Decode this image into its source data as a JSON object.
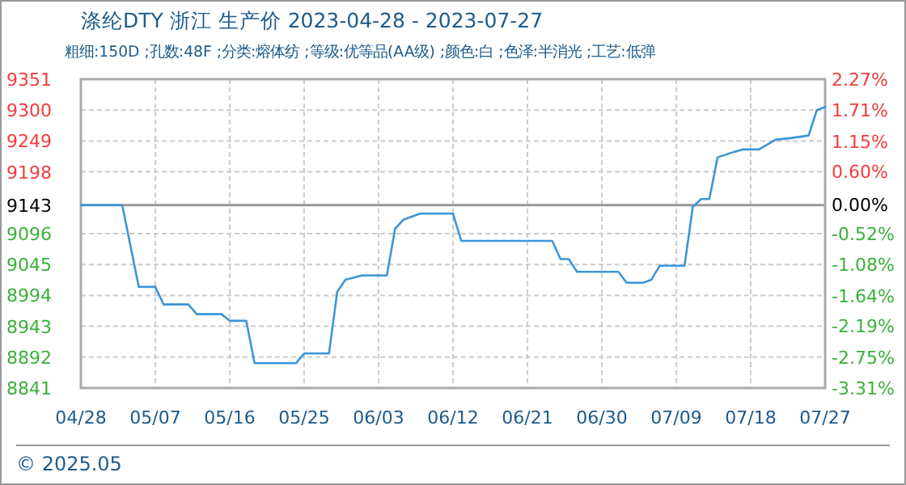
{
  "chart_data": {
    "type": "line",
    "title": "涤纶DTY 浙江 生产价 2023-04-28 - 2023-07-27",
    "subtitle": "粗细:150D ;孔数:48F ;分类:熔体纺 ;等级:优等品(AA级) ;颜色:白 ;色泽:半消光 ;工艺:低弹",
    "x": [
      "2023-04-28",
      "2023-05-03",
      "2023-05-05",
      "2023-05-07",
      "2023-05-08",
      "2023-05-11",
      "2023-05-12",
      "2023-05-15",
      "2023-05-16",
      "2023-05-18",
      "2023-05-19",
      "2023-05-24",
      "2023-05-25",
      "2023-05-28",
      "2023-05-29",
      "2023-05-30",
      "2023-06-01",
      "2023-06-04",
      "2023-06-05",
      "2023-06-06",
      "2023-06-08",
      "2023-06-12",
      "2023-06-13",
      "2023-06-24",
      "2023-06-25",
      "2023-06-26",
      "2023-06-27",
      "2023-07-02",
      "2023-07-03",
      "2023-07-05",
      "2023-07-06",
      "2023-07-07",
      "2023-07-10",
      "2023-07-11",
      "2023-07-12",
      "2023-07-13",
      "2023-07-14",
      "2023-07-16",
      "2023-07-17",
      "2023-07-19",
      "2023-07-21",
      "2023-07-23",
      "2023-07-25",
      "2023-07-26",
      "2023-07-27"
    ],
    "series": [
      {
        "color": "#3a96d8",
        "values": [
          9143,
          9143,
          9008,
          9008,
          8979,
          8979,
          8963,
          8963,
          8952,
          8952,
          8882,
          8882,
          8898,
          8898,
          9000,
          9020,
          9027,
          9027,
          9104,
          9119,
          9129,
          9129,
          9084,
          9084,
          9054,
          9054,
          9033,
          9033,
          9015,
          9015,
          9020,
          9043,
          9043,
          9140,
          9153,
          9153,
          9222,
          9231,
          9235,
          9235,
          9251,
          9254,
          9258,
          9300,
          9305
        ]
      }
    ],
    "xlim": [
      "2023-04-28",
      "2023-07-27"
    ],
    "xticks": [
      {
        "value": "2023-04-28",
        "label": "04/28"
      },
      {
        "value": "2023-05-07",
        "label": "05/07"
      },
      {
        "value": "2023-05-16",
        "label": "05/16"
      },
      {
        "value": "2023-05-25",
        "label": "05/25"
      },
      {
        "value": "2023-06-03",
        "label": "06/03"
      },
      {
        "value": "2023-06-12",
        "label": "06/12"
      },
      {
        "value": "2023-06-21",
        "label": "06/21"
      },
      {
        "value": "2023-06-30",
        "label": "06/30"
      },
      {
        "value": "2023-07-09",
        "label": "07/09"
      },
      {
        "value": "2023-07-18",
        "label": "07/18"
      },
      {
        "value": "2023-07-27",
        "label": "07/27"
      }
    ],
    "ylim": [
      8841,
      9351
    ],
    "yticks": [
      8841,
      8892,
      8943,
      8994,
      9045,
      9096,
      9143,
      9198,
      9249,
      9300,
      9351
    ],
    "y2lim": [
      -3.31,
      2.27
    ],
    "y2ticks": [
      {
        "value": -3.31,
        "label": "-3.31%"
      },
      {
        "value": -2.75,
        "label": "-2.75%"
      },
      {
        "value": -2.19,
        "label": "-2.19%"
      },
      {
        "value": -1.64,
        "label": "-1.64%"
      },
      {
        "value": -1.08,
        "label": "-1.08%"
      },
      {
        "value": -0.52,
        "label": "-0.52%"
      },
      {
        "value": 0,
        "label": "0.00%"
      },
      {
        "value": 0.6,
        "label": "0.60%"
      },
      {
        "value": 1.15,
        "label": "1.15%"
      },
      {
        "value": 1.71,
        "label": "1.71%"
      },
      {
        "value": 2.27,
        "label": "2.27%"
      }
    ],
    "ref_lines": [
      {
        "axis": "y",
        "value": 9143,
        "color": "#999999"
      }
    ],
    "grid": true,
    "line_style": "solid",
    "annotations": [
      "© 2025.05"
    ]
  }
}
